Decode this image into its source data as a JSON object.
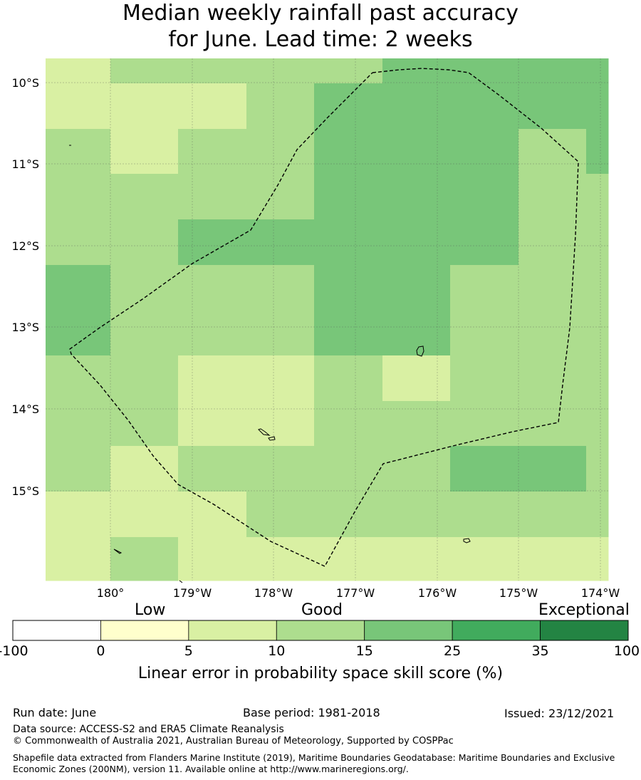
{
  "title_line1": "Median weekly rainfall past accuracy",
  "title_line2": "for June. Lead time: 2 weeks",
  "map": {
    "lon_ticks": [
      "180°",
      "179°W",
      "178°W",
      "177°W",
      "176°W",
      "175°W",
      "174°W"
    ],
    "lat_ticks": [
      "10°S",
      "11°S",
      "12°S",
      "13°S",
      "14°S",
      "15°S"
    ],
    "colors": {
      "c5_10": "#d9f0a3",
      "c10_15": "#addd8e",
      "c15_25": "#78c679",
      "boundary": "#000000",
      "grid": "#555555"
    }
  },
  "colorbar": {
    "categories": [
      "Low",
      "Good",
      "Exceptional"
    ],
    "ticks": [
      "-100",
      "0",
      "5",
      "10",
      "15",
      "25",
      "35",
      "100"
    ],
    "colors": [
      "#ffffff",
      "#ffffcc",
      "#d9f0a3",
      "#addd8e",
      "#78c679",
      "#41ab5d",
      "#238443"
    ],
    "label": "Linear error in probability space skill score (%)"
  },
  "footer": {
    "run_date": "Run date: June",
    "base_period": "Base period: 1981-2018",
    "issued": "Issued: 23/12/2021",
    "data_source": "Data source: ACCESS-S2 and ERA5 Climate Reanalysis",
    "copyright": "© Commonwealth of Australia 2021, Australian Bureau of Meteorology, Supported by COSPPac",
    "shapefile_note": "Shapefile data extracted from Flanders Marine Institute (2019), Maritime Boundaries Geodatabase: Maritime Boundaries and Exclusive Economic Zones (200NM), version 11. Available online at http://www.marineregions.org/."
  }
}
